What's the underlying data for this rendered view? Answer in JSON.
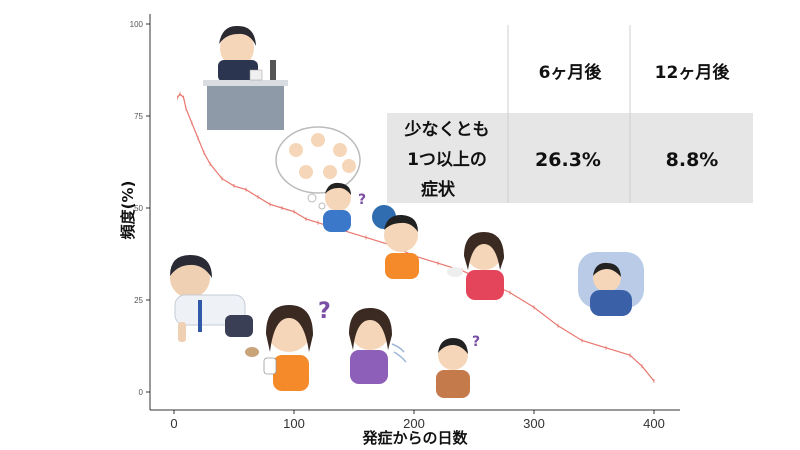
{
  "chart_data": {
    "type": "line",
    "xlabel": "発症からの日数",
    "ylabel": "頻度(%)",
    "xlim": [
      0,
      410
    ],
    "ylim": [
      0,
      100
    ],
    "xticks": [
      "0",
      "100",
      "200",
      "300",
      "400"
    ],
    "yticks": [
      "0",
      "25",
      "50",
      "75",
      "100"
    ],
    "color": "#e8776f",
    "grid": false,
    "series": [
      {
        "x": [
          3,
          5,
          8,
          10,
          15,
          20,
          25,
          30,
          40,
          50,
          60,
          70,
          80,
          90,
          100,
          110,
          120,
          140,
          160,
          180,
          200,
          220,
          240,
          260,
          280,
          300,
          320,
          340,
          360,
          380,
          390,
          400
        ],
        "values": [
          80,
          81,
          80,
          77,
          73,
          69,
          65,
          62,
          58,
          56,
          55,
          53,
          51,
          50,
          49,
          47,
          46,
          44,
          42,
          40,
          37,
          35,
          33,
          30,
          27,
          23,
          18,
          14,
          12,
          10,
          7,
          3
        ]
      }
    ]
  },
  "table": {
    "headers": [
      "6ヶ月後",
      "12ヶ月後"
    ],
    "row_label": [
      "少なくとも",
      "1つ以上の",
      "症状"
    ],
    "values": [
      "26.3%",
      "8.8%"
    ],
    "highlight_color": "#e8e8e8"
  }
}
